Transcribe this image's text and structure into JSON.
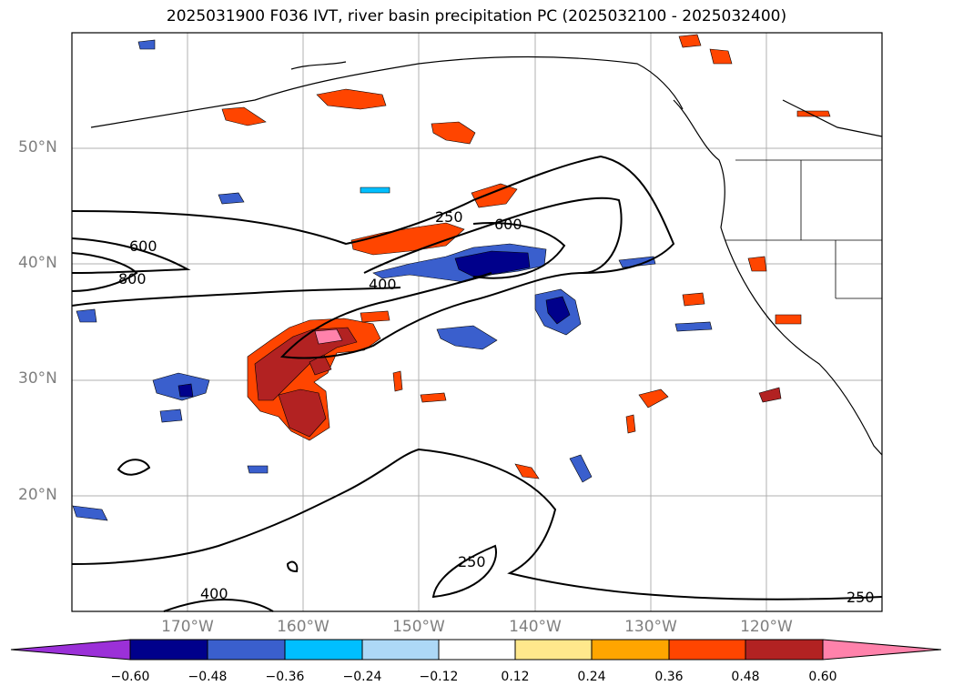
{
  "title": "2025031900 F036 IVT, river basin precipitation PC (2025032100 - 2025032400)",
  "lat_labels": [
    "50°N",
    "40°N",
    "30°N",
    "20°N"
  ],
  "lon_labels": [
    "170°W",
    "160°W",
    "150°W",
    "140°W",
    "130°W",
    "120°W"
  ],
  "contour_labels": [
    "250",
    "600",
    "600",
    "800",
    "400",
    "400",
    "250",
    "250"
  ],
  "colorbar": {
    "colors": [
      "#9b30d8",
      "#00008b",
      "#3a5fcd",
      "#00bfff",
      "#add8f6",
      "#ffffff",
      "#ffe88c",
      "#ffa500",
      "#ff4500",
      "#b22222",
      "#ff82ab"
    ],
    "ticks": [
      "−0.60",
      "−0.48",
      "−0.36",
      "−0.24",
      "−0.12",
      "0.12",
      "0.24",
      "0.36",
      "0.48",
      "0.60"
    ]
  },
  "colors": {
    "contour": "#000000",
    "grid": "#b0b0b0",
    "axis_label": "#7f7f7f"
  }
}
